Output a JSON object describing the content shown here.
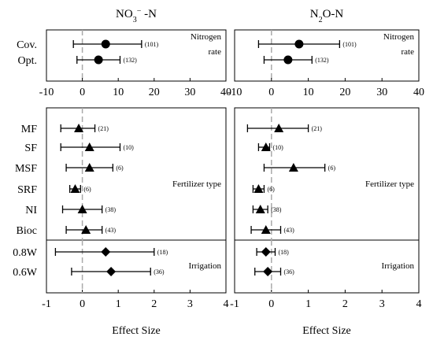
{
  "columns": [
    {
      "key": "no3",
      "title_main": "NO",
      "title_sub": "3",
      "title_sup": "−",
      "title_tail": " -N"
    },
    {
      "key": "n2o",
      "title_main": "N",
      "title_sub": "2",
      "title_sup": "",
      "title_tail": "O-N"
    }
  ],
  "x_axis_label": "Effect Size",
  "chart_data": [
    {
      "type": "forest",
      "column": "no3",
      "group": "nitrogen",
      "group_label_lines": [
        "Nitrogen",
        "rate"
      ],
      "categories": [
        "Cov.",
        "Opt."
      ],
      "mean": [
        6.5,
        4.5
      ],
      "lower": [
        -2.5,
        -1.5
      ],
      "upper": [
        16.5,
        10.5
      ],
      "n_labels": [
        "(101)",
        "(132)"
      ],
      "marker": "circle",
      "xlim": [
        -10,
        40
      ],
      "xticks": [
        "-10",
        "0",
        "10",
        "20",
        "30",
        "40"
      ],
      "ref_line": 0
    },
    {
      "type": "forest",
      "column": "no3",
      "group": "fertilizer",
      "group_label_lines": [
        "Fertilizer type"
      ],
      "categories": [
        "MF",
        "SF",
        "MSF",
        "SRF",
        "NI",
        "Bioc"
      ],
      "mean": [
        -0.1,
        0.2,
        0.2,
        -0.2,
        0.0,
        0.1
      ],
      "lower": [
        -0.6,
        -0.6,
        -0.45,
        -0.35,
        -0.55,
        -0.45
      ],
      "upper": [
        0.35,
        1.05,
        0.85,
        -0.05,
        0.55,
        0.55
      ],
      "n_labels": [
        "(21)",
        "(10)",
        "(6)",
        "(6)",
        "(38)",
        "(43)"
      ],
      "marker": "triangle",
      "xlim": [
        -1,
        4
      ],
      "xticks": [
        "-1",
        "0",
        "1",
        "2",
        "3",
        "4"
      ],
      "ref_line": 0
    },
    {
      "type": "forest",
      "column": "no3",
      "group": "irrigation",
      "group_label_lines": [
        "Irrigation"
      ],
      "categories": [
        "0.8W",
        "0.6W"
      ],
      "mean": [
        0.65,
        0.8
      ],
      "lower": [
        -0.75,
        -0.3
      ],
      "upper": [
        2.0,
        1.9
      ],
      "n_labels": [
        "(18)",
        "(36)"
      ],
      "marker": "diamond",
      "xlim": [
        -1,
        4
      ],
      "ref_line": 0
    },
    {
      "type": "forest",
      "column": "n2o",
      "group": "nitrogen",
      "group_label_lines": [
        "Nitrogen",
        "rate"
      ],
      "categories": [
        "Cov.",
        "Opt."
      ],
      "mean": [
        7.5,
        4.5
      ],
      "lower": [
        -3.5,
        -2.0
      ],
      "upper": [
        18.5,
        11.0
      ],
      "n_labels": [
        "(101)",
        "(132)"
      ],
      "marker": "circle",
      "xlim": [
        -10,
        40
      ],
      "xticks": [
        "-10",
        "0",
        "10",
        "20",
        "30",
        "40"
      ],
      "ref_line": 0
    },
    {
      "type": "forest",
      "column": "n2o",
      "group": "fertilizer",
      "group_label_lines": [
        "Fertilizer type"
      ],
      "categories": [
        "MF",
        "SF",
        "MSF",
        "SRF",
        "NI",
        "Bioc"
      ],
      "mean": [
        0.2,
        -0.15,
        0.6,
        -0.35,
        -0.3,
        -0.15
      ],
      "lower": [
        -0.65,
        -0.35,
        -0.2,
        -0.5,
        -0.5,
        -0.55
      ],
      "upper": [
        1.0,
        -0.05,
        1.45,
        -0.2,
        -0.1,
        0.25
      ],
      "n_labels": [
        "(21)",
        "(10)",
        "(6)",
        "(6)",
        "(38)",
        "(43)"
      ],
      "marker": "triangle",
      "xlim": [
        -1,
        4
      ],
      "xticks": [
        "-1",
        "0",
        "1",
        "2",
        "3",
        "4"
      ],
      "ref_line": 0
    },
    {
      "type": "forest",
      "column": "n2o",
      "group": "irrigation",
      "group_label_lines": [
        "Irrigation"
      ],
      "categories": [
        "0.8W",
        "0.6W"
      ],
      "mean": [
        -0.15,
        -0.1
      ],
      "lower": [
        -0.4,
        -0.45
      ],
      "upper": [
        0.1,
        0.25
      ],
      "n_labels": [
        "(18)",
        "(36)"
      ],
      "marker": "diamond",
      "xlim": [
        -1,
        4
      ],
      "ref_line": 0
    }
  ]
}
